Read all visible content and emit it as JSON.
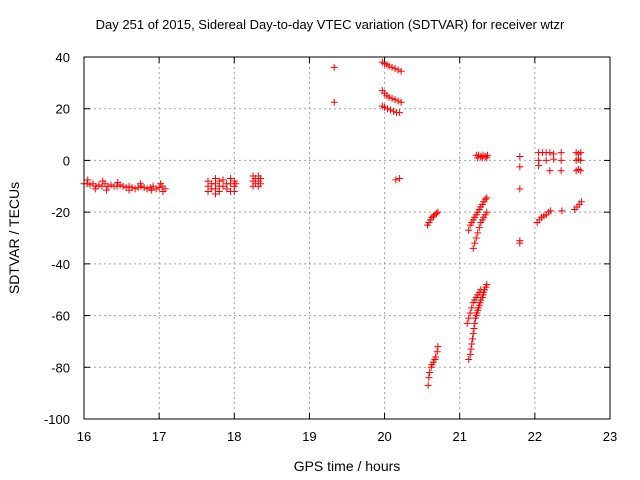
{
  "chart_data": {
    "type": "scatter",
    "title": "Day 251 of 2015, Sidereal Day-to-day VTEC variation (SDTVAR) for receiver wtzr",
    "xlabel": "GPS time / hours",
    "ylabel": "SDTVAR / TECUs",
    "xlim": [
      16,
      23
    ],
    "ylim": [
      -100,
      40
    ],
    "xticks": [
      16,
      17,
      18,
      19,
      20,
      21,
      22,
      23
    ],
    "yticks": [
      -100,
      -80,
      -60,
      -40,
      -20,
      0,
      20,
      40
    ],
    "xtick_labels": [
      "16",
      "17",
      "18",
      "19",
      "20",
      "21",
      "22",
      "23"
    ],
    "ytick_labels": [
      "-100",
      "-80",
      "-60",
      "-40",
      "-20",
      "0",
      "20",
      "40"
    ],
    "grid": true,
    "marker": "+",
    "color": "#ff0000",
    "series": [
      {
        "name": "SDTVAR",
        "points": [
          [
            16.0,
            -9
          ],
          [
            16.04,
            -9
          ],
          [
            16.08,
            -9.5
          ],
          [
            16.12,
            -9
          ],
          [
            16.16,
            -10
          ],
          [
            16.2,
            -9.5
          ],
          [
            16.24,
            -10
          ],
          [
            16.28,
            -9
          ],
          [
            16.32,
            -10
          ],
          [
            16.36,
            -9.5
          ],
          [
            16.4,
            -10
          ],
          [
            16.44,
            -10
          ],
          [
            16.48,
            -9.5
          ],
          [
            16.52,
            -10
          ],
          [
            16.56,
            -10.5
          ],
          [
            16.6,
            -10
          ],
          [
            16.64,
            -10.5
          ],
          [
            16.68,
            -11
          ],
          [
            16.72,
            -10.5
          ],
          [
            16.76,
            -10
          ],
          [
            16.8,
            -10.5
          ],
          [
            16.84,
            -11
          ],
          [
            16.88,
            -10.5
          ],
          [
            16.92,
            -10
          ],
          [
            16.96,
            -11
          ],
          [
            17.0,
            -10.5
          ],
          [
            17.04,
            -10
          ],
          [
            17.08,
            -11
          ],
          [
            16.05,
            -7.5
          ],
          [
            16.15,
            -11
          ],
          [
            16.25,
            -8
          ],
          [
            16.3,
            -11.5
          ],
          [
            16.45,
            -8.5
          ],
          [
            16.6,
            -11.5
          ],
          [
            16.75,
            -9
          ],
          [
            16.9,
            -11.5
          ],
          [
            17.02,
            -9
          ],
          [
            17.05,
            -12
          ],
          [
            17.65,
            -8
          ],
          [
            17.65,
            -10
          ],
          [
            17.65,
            -12
          ],
          [
            17.7,
            -9
          ],
          [
            17.7,
            -11
          ],
          [
            17.75,
            -7
          ],
          [
            17.75,
            -9
          ],
          [
            17.75,
            -11
          ],
          [
            17.75,
            -13
          ],
          [
            17.8,
            -8
          ],
          [
            17.8,
            -10
          ],
          [
            17.8,
            -12
          ],
          [
            17.85,
            -7.5
          ],
          [
            17.85,
            -10
          ],
          [
            17.9,
            -9
          ],
          [
            17.9,
            -11
          ],
          [
            17.95,
            -7
          ],
          [
            17.95,
            -9
          ],
          [
            17.95,
            -12
          ],
          [
            18.0,
            -8
          ],
          [
            18.0,
            -10
          ],
          [
            18.0,
            -12
          ],
          [
            18.02,
            -9
          ],
          [
            18.25,
            -6
          ],
          [
            18.25,
            -8
          ],
          [
            18.25,
            -10
          ],
          [
            18.28,
            -7
          ],
          [
            18.28,
            -9
          ],
          [
            18.32,
            -6
          ],
          [
            18.32,
            -8
          ],
          [
            18.32,
            -10
          ],
          [
            18.35,
            -7
          ],
          [
            18.35,
            -9
          ],
          [
            19.33,
            36
          ],
          [
            19.33,
            22.5
          ],
          [
            19.97,
            38
          ],
          [
            20.0,
            37.5
          ],
          [
            20.03,
            37
          ],
          [
            20.06,
            36.5
          ],
          [
            20.1,
            36
          ],
          [
            20.14,
            35.5
          ],
          [
            20.18,
            35
          ],
          [
            20.22,
            34.5
          ],
          [
            19.97,
            27
          ],
          [
            20.0,
            26
          ],
          [
            20.03,
            25
          ],
          [
            20.06,
            24.5
          ],
          [
            20.1,
            24
          ],
          [
            20.14,
            23.5
          ],
          [
            20.18,
            23
          ],
          [
            20.22,
            22.5
          ],
          [
            19.97,
            21
          ],
          [
            20.0,
            20.5
          ],
          [
            20.04,
            20
          ],
          [
            20.08,
            19.5
          ],
          [
            20.12,
            19
          ],
          [
            20.16,
            18.5
          ],
          [
            20.2,
            18.5
          ],
          [
            20.15,
            -7.5
          ],
          [
            20.2,
            -7
          ],
          [
            20.57,
            -25
          ],
          [
            20.59,
            -24
          ],
          [
            20.61,
            -23
          ],
          [
            20.63,
            -22
          ],
          [
            20.65,
            -21.5
          ],
          [
            20.67,
            -21
          ],
          [
            20.69,
            -20.5
          ],
          [
            20.71,
            -20
          ],
          [
            20.58,
            -87
          ],
          [
            20.59,
            -84
          ],
          [
            20.6,
            -82
          ],
          [
            20.62,
            -80
          ],
          [
            20.63,
            -79
          ],
          [
            20.65,
            -78
          ],
          [
            20.67,
            -77
          ],
          [
            20.68,
            -76
          ],
          [
            20.7,
            -74
          ],
          [
            20.71,
            -72
          ],
          [
            21.12,
            -77
          ],
          [
            21.14,
            -75
          ],
          [
            21.15,
            -73
          ],
          [
            21.16,
            -71
          ],
          [
            21.17,
            -69
          ],
          [
            21.18,
            -67
          ],
          [
            21.19,
            -65
          ],
          [
            21.2,
            -63
          ],
          [
            21.21,
            -61
          ],
          [
            21.22,
            -60
          ],
          [
            21.23,
            -59
          ],
          [
            21.24,
            -58
          ],
          [
            21.25,
            -57
          ],
          [
            21.26,
            -56
          ],
          [
            21.27,
            -55
          ],
          [
            21.28,
            -54
          ],
          [
            21.3,
            -53
          ],
          [
            21.31,
            -52
          ],
          [
            21.32,
            -51
          ],
          [
            21.33,
            -50
          ],
          [
            21.35,
            -49
          ],
          [
            21.36,
            -48
          ],
          [
            21.1,
            -63
          ],
          [
            21.12,
            -61
          ],
          [
            21.14,
            -59
          ],
          [
            21.16,
            -57
          ],
          [
            21.18,
            -55
          ],
          [
            21.2,
            -54
          ],
          [
            21.22,
            -53
          ],
          [
            21.24,
            -52
          ],
          [
            21.26,
            -51
          ],
          [
            21.28,
            -50
          ],
          [
            21.18,
            -34
          ],
          [
            21.2,
            -32
          ],
          [
            21.22,
            -30
          ],
          [
            21.24,
            -28
          ],
          [
            21.26,
            -26
          ],
          [
            21.28,
            -24
          ],
          [
            21.3,
            -23
          ],
          [
            21.32,
            -22
          ],
          [
            21.34,
            -21
          ],
          [
            21.36,
            -20
          ],
          [
            21.12,
            -27
          ],
          [
            21.14,
            -25
          ],
          [
            21.16,
            -24
          ],
          [
            21.18,
            -23
          ],
          [
            21.2,
            -22
          ],
          [
            21.22,
            -21
          ],
          [
            21.24,
            -20
          ],
          [
            21.26,
            -19
          ],
          [
            21.28,
            -18
          ],
          [
            21.3,
            -17
          ],
          [
            21.32,
            -16
          ],
          [
            21.34,
            -15
          ],
          [
            21.36,
            -14.5
          ],
          [
            21.22,
            2
          ],
          [
            21.25,
            2
          ],
          [
            21.28,
            1.5
          ],
          [
            21.31,
            2
          ],
          [
            21.34,
            1.5
          ],
          [
            21.37,
            2
          ],
          [
            21.24,
            1
          ],
          [
            21.3,
            1
          ],
          [
            21.36,
            1
          ],
          [
            21.8,
            1.5
          ],
          [
            21.8,
            -2.5
          ],
          [
            21.8,
            -11
          ],
          [
            21.8,
            -31
          ],
          [
            21.8,
            -32
          ],
          [
            22.03,
            -24
          ],
          [
            22.06,
            -23
          ],
          [
            22.09,
            -22
          ],
          [
            22.12,
            -21.5
          ],
          [
            22.15,
            -21
          ],
          [
            22.18,
            -20
          ],
          [
            22.21,
            -19.5
          ],
          [
            22.36,
            -19.5
          ],
          [
            22.05,
            3
          ],
          [
            22.1,
            3
          ],
          [
            22.15,
            3
          ],
          [
            22.2,
            3
          ],
          [
            22.25,
            2.5
          ],
          [
            22.35,
            3
          ],
          [
            22.05,
            0
          ],
          [
            22.15,
            0
          ],
          [
            22.25,
            0.5
          ],
          [
            22.35,
            0
          ],
          [
            22.05,
            -2
          ],
          [
            22.2,
            -4
          ],
          [
            22.35,
            -4
          ],
          [
            22.55,
            3
          ],
          [
            22.58,
            2.5
          ],
          [
            22.61,
            3
          ],
          [
            22.55,
            0
          ],
          [
            22.58,
            0.5
          ],
          [
            22.61,
            0
          ],
          [
            22.55,
            -4
          ],
          [
            22.58,
            -3.5
          ],
          [
            22.61,
            -4
          ],
          [
            22.53,
            -19
          ],
          [
            22.56,
            -18
          ],
          [
            22.59,
            -17
          ],
          [
            22.62,
            -16
          ]
        ]
      }
    ]
  }
}
